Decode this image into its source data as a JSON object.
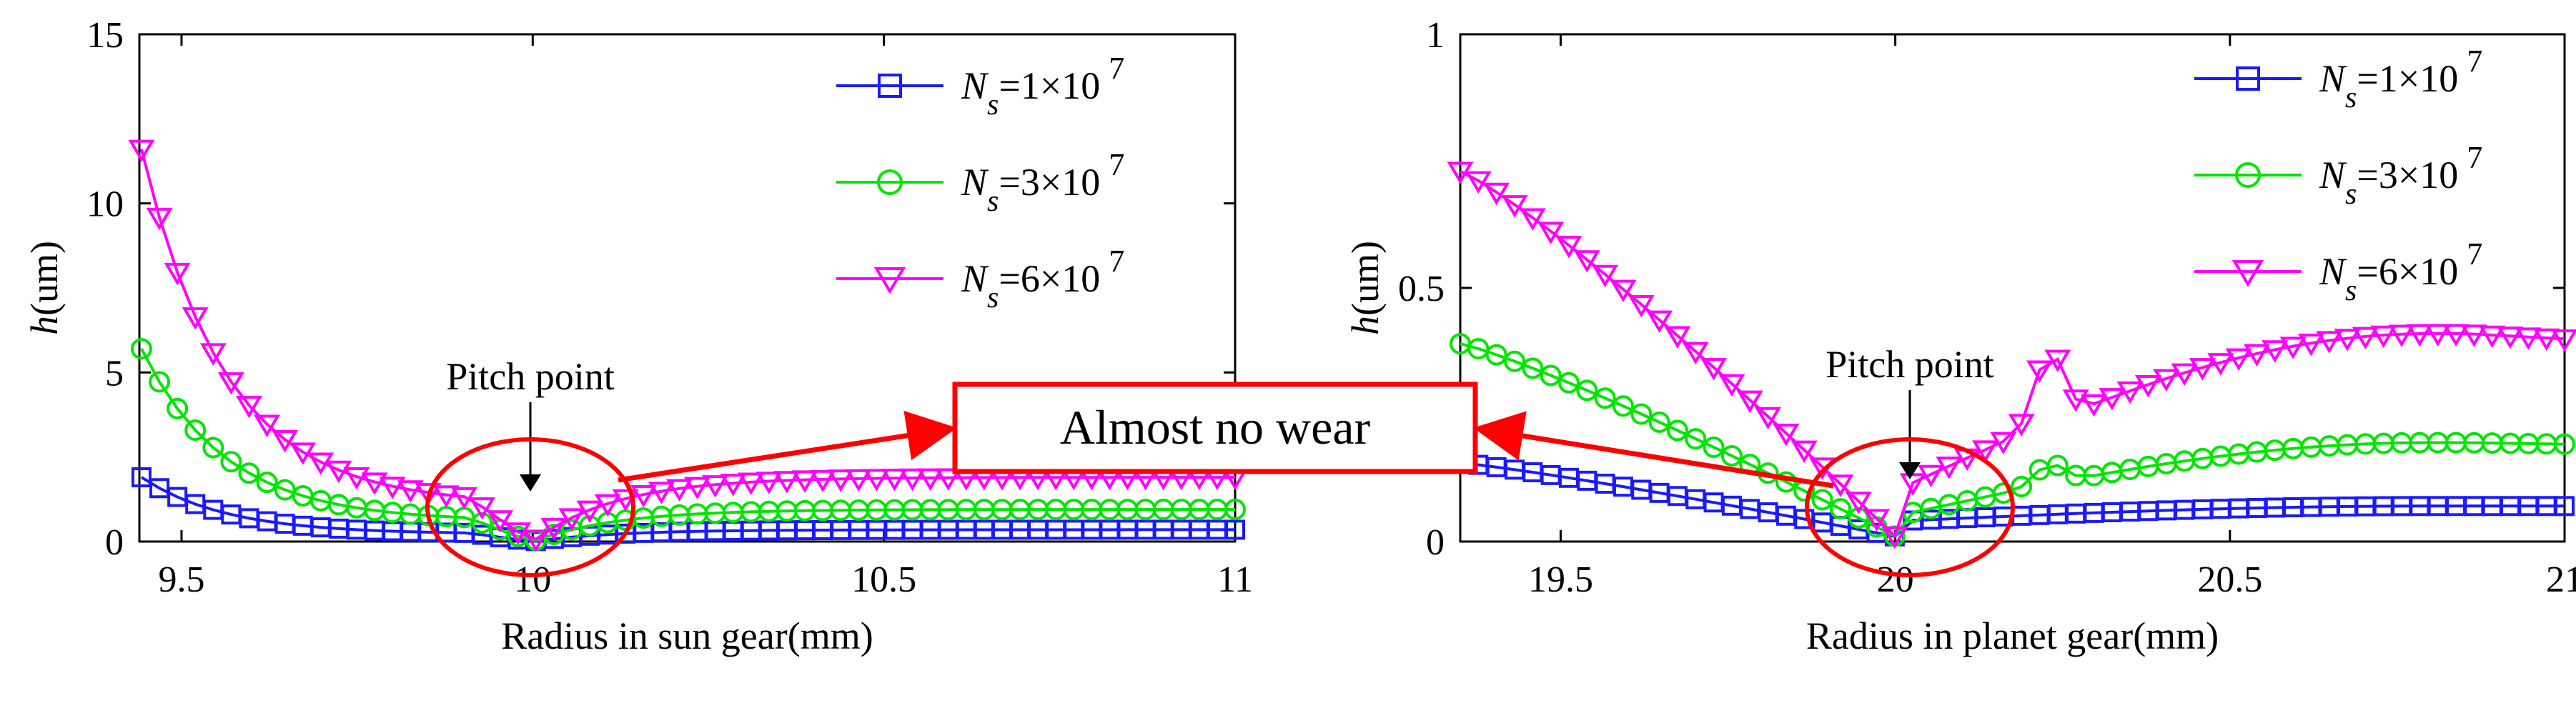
{
  "chart_data": [
    {
      "type": "line",
      "xlabel": "Radius in sun gear(mm)",
      "ylabel": "h(um)",
      "xlim": [
        9.44,
        11.0
      ],
      "ylim": [
        0,
        15
      ],
      "xticks": [
        "9.5",
        "10",
        "10.5",
        "11"
      ],
      "xtick_values": [
        9.5,
        10,
        10.5,
        11
      ],
      "yticks": [
        "0",
        "5",
        "10",
        "15"
      ],
      "ytick_values": [
        0,
        5,
        10,
        15
      ],
      "legend_position": "top-right",
      "pitch_point_label": "Pitch point",
      "pitch_x": 10.0,
      "series": [
        {
          "name": "Ns=1×10 7",
          "name_main": "N",
          "name_sub": "s",
          "name_rest": "=1×10",
          "name_sup": "7",
          "color": "#1a1aff",
          "marker": "square",
          "x0": 9.443,
          "x1": 11.0,
          "n": 62,
          "pitch": 10.0,
          "left_peak": 1.9,
          "left_floor": 0.22,
          "left_decay": 0.12,
          "right_level": 0.35,
          "right_decay": 0.12,
          "bump": 0
        },
        {
          "name": "Ns=3×10 7",
          "name_main": "N",
          "name_sub": "s",
          "name_rest": "=3×10",
          "name_sup": "7",
          "color": "#00e600",
          "marker": "circle",
          "x0": 9.443,
          "x1": 11.0,
          "n": 62,
          "pitch": 10.0,
          "left_peak": 5.7,
          "left_floor": 0.6,
          "left_decay": 0.12,
          "right_level": 0.95,
          "right_decay": 0.12,
          "bump": 0
        },
        {
          "name": "Ns=6×10 7",
          "name_main": "N",
          "name_sub": "s",
          "name_rest": "=6×10",
          "name_sup": "7",
          "color": "#ff00ff",
          "marker": "triangle-down",
          "x0": 9.443,
          "x1": 11.0,
          "n": 62,
          "pitch": 10.0,
          "left_peak": 11.6,
          "left_floor": 1.1,
          "left_decay": 0.12,
          "right_level": 1.9,
          "right_decay": 0.12,
          "bump": 0
        }
      ]
    },
    {
      "type": "line",
      "xlabel": "Radius in planet gear(mm)",
      "ylabel": "h(um)",
      "xlim": [
        19.35,
        21.0
      ],
      "ylim": [
        0,
        1
      ],
      "xticks": [
        "19.5",
        "20",
        "20.5",
        "21"
      ],
      "xtick_values": [
        19.5,
        20,
        20.5,
        21
      ],
      "yticks": [
        "0",
        "0.5",
        "1"
      ],
      "ytick_values": [
        0,
        0.5,
        1
      ],
      "legend_position": "top-right",
      "pitch_point_label": "Pitch point",
      "pitch_x": 20.0,
      "series": [
        {
          "name": "Ns=1×10 7",
          "name_main": "N",
          "name_sub": "s",
          "name_rest": "=1×10",
          "name_sup": "7",
          "color": "#1a1aff",
          "marker": "square",
          "x0": 19.35,
          "x1": 21.0,
          "n": 62,
          "pitch": 20.0,
          "left_peak": 0.155,
          "left_end": 0.01,
          "right_start": 0.04,
          "right_peak": 0.07,
          "bump_x": 20.3,
          "bump_h": 0.0
        },
        {
          "name": "Ns=3×10 7",
          "name_main": "N",
          "name_sub": "s",
          "name_rest": "=3×10",
          "name_sup": "7",
          "color": "#00e600",
          "marker": "circle",
          "x0": 19.35,
          "x1": 21.0,
          "n": 62,
          "pitch": 20.0,
          "left_peak": 0.39,
          "left_end": 0.01,
          "right_start": 0.05,
          "right_peak": 0.195,
          "bump_x": 20.23,
          "bump_h": 0.04
        },
        {
          "name": "Ns=6×10 7",
          "name_main": "N",
          "name_sub": "s",
          "name_rest": "=6×10",
          "name_sup": "7",
          "color": "#ff00ff",
          "marker": "triangle-down",
          "x0": 19.35,
          "x1": 21.0,
          "n": 62,
          "pitch": 20.0,
          "left_peak": 0.73,
          "left_end": 0.01,
          "right_start": 0.1,
          "right_peak": 0.41,
          "bump_x": 20.23,
          "bump_h": 0.14
        }
      ]
    }
  ],
  "callout": {
    "text": "Almost no wear",
    "color": "#ff0000"
  }
}
